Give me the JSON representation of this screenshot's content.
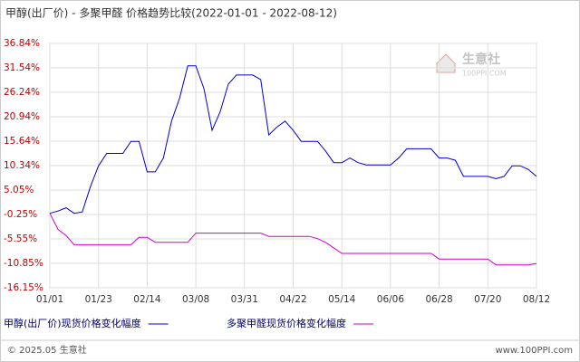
{
  "chart_data": {
    "type": "line",
    "title": "甲醇(出厂价) - 多聚甲醛 价格趋势比较(2022-01-01 - 2022-08-12)",
    "categories": [
      "01/01",
      null,
      null,
      null,
      null,
      null,
      "01/23",
      null,
      null,
      null,
      null,
      null,
      "02/14",
      null,
      null,
      null,
      null,
      null,
      "03/08",
      null,
      null,
      null,
      null,
      null,
      "03/31",
      null,
      null,
      null,
      null,
      null,
      "04/22",
      null,
      null,
      null,
      null,
      null,
      "05/14",
      null,
      null,
      null,
      null,
      null,
      "06/06",
      null,
      null,
      null,
      null,
      null,
      "06/28",
      null,
      null,
      null,
      null,
      null,
      "07/20",
      null,
      null,
      null,
      null,
      null,
      "08/12"
    ],
    "series": [
      {
        "name": "甲醇(出厂价)现货价格变化幅度",
        "color": "#0000cc",
        "values": [
          0,
          0.5,
          1.2,
          0,
          0.3,
          5.8,
          10.3,
          13,
          13,
          13,
          15.6,
          15.6,
          9,
          9,
          12,
          20,
          25,
          32,
          32,
          27,
          18,
          22,
          28,
          30,
          30,
          30,
          29,
          17,
          18.7,
          20,
          18,
          15.6,
          15.6,
          15.6,
          13.5,
          11,
          11,
          12,
          11,
          10.5,
          10.5,
          10.5,
          10.5,
          12,
          14,
          14,
          14,
          14,
          12,
          12,
          11.5,
          8,
          8,
          8,
          8,
          7.5,
          8,
          10.3,
          10.3,
          9.5,
          8
        ]
      },
      {
        "name": "多聚甲醛现货价格变化幅度",
        "color": "#cc00cc",
        "values": [
          0,
          -3.5,
          -4.8,
          -6.8,
          -6.8,
          -6.8,
          -6.8,
          -6.8,
          -6.8,
          -6.8,
          -6.8,
          -5.2,
          -5.2,
          -6.3,
          -6.3,
          -6.3,
          -6.3,
          -6.3,
          -4.3,
          -4.3,
          -4.3,
          -4.3,
          -4.3,
          -4.3,
          -4.3,
          -4.3,
          -4.3,
          -5,
          -5,
          -5,
          -5,
          -5,
          -5,
          -5.5,
          -6.3,
          -7.5,
          -8.7,
          -8.7,
          -8.7,
          -8.7,
          -8.7,
          -8.7,
          -8.7,
          -8.7,
          -8.7,
          -8.7,
          -8.7,
          -8.7,
          -9.9,
          -9.9,
          -9.9,
          -9.9,
          -9.9,
          -9.9,
          -9.9,
          -11.2,
          -11.2,
          -11.2,
          -11.2,
          -11.2,
          -10.9
        ]
      }
    ],
    "ylim": [
      -16.15,
      36.84
    ],
    "yticks": [
      {
        "value": 36.84,
        "label": "36.84%"
      },
      {
        "value": 31.54,
        "label": "31.54%"
      },
      {
        "value": 26.24,
        "label": "26.24%"
      },
      {
        "value": 20.94,
        "label": "20.94%"
      },
      {
        "value": 15.64,
        "label": "15.64%"
      },
      {
        "value": 10.34,
        "label": "10.34%"
      },
      {
        "value": 5.05,
        "label": "5.05%"
      },
      {
        "value": -0.25,
        "label": "-0.25%"
      },
      {
        "value": -5.55,
        "label": "-5.55%"
      },
      {
        "value": -10.85,
        "label": "-10.85%"
      },
      {
        "value": -16.15,
        "label": "-16.15%"
      }
    ],
    "grid": true
  },
  "logo": {
    "name": "生意社",
    "url": "100PPI.COM"
  },
  "footer": {
    "copyright": "© 2025.05 生意社",
    "site": "www.100PPI.com"
  }
}
